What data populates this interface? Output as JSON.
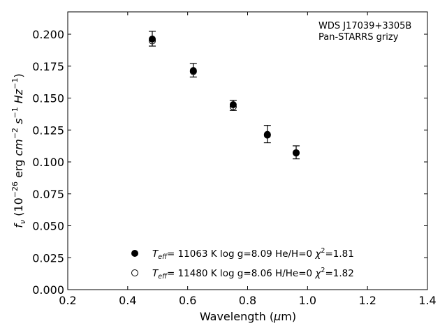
{
  "chart_data": {
    "type": "scatter",
    "xlabel": "Wavelength (μm)",
    "xlabel_parts": {
      "pre": "Wavelength (",
      "mu": "μ",
      "post": "m)"
    },
    "ylabel_parts": {
      "f": "f",
      "nu": "ν",
      "open": " (10",
      "exp26": "−26",
      "erg": " erg ",
      "cm": "cm",
      "exp2": "−2",
      "s": "s",
      "exp1a": "−1",
      "hz": "Hz",
      "exp1b": "−1",
      "close": ")"
    },
    "xlim": [
      0.2,
      1.4
    ],
    "ylim": [
      0.0,
      0.2175
    ],
    "xticks": [
      "0.2",
      "0.4",
      "0.6",
      "0.8",
      "1.0",
      "1.2",
      "1.4"
    ],
    "yticks": [
      "0.000",
      "0.025",
      "0.050",
      "0.075",
      "0.100",
      "0.125",
      "0.150",
      "0.175",
      "0.200"
    ],
    "annotation": [
      "WDS J17039+3305B",
      "Pan-STARRS grizy"
    ],
    "observed": [
      {
        "x": 0.482,
        "y": 0.1965,
        "err": 0.0058
      },
      {
        "x": 0.619,
        "y": 0.1718,
        "err": 0.0053
      },
      {
        "x": 0.752,
        "y": 0.1443,
        "err": 0.004
      },
      {
        "x": 0.866,
        "y": 0.1218,
        "err": 0.0068
      },
      {
        "x": 0.962,
        "y": 0.1075,
        "err": 0.0051
      }
    ],
    "series": [
      {
        "marker": "filled",
        "label": {
          "T": "T",
          "eff": "eff",
          "rest": "= 11063 K  log g=8.09  He/H=0  ",
          "chi": "χ",
          "two": "2",
          "val": "=1.81"
        },
        "x": [
          0.482,
          0.619,
          0.752,
          0.866,
          0.962
        ],
        "y": [
          0.1962,
          0.1715,
          0.1448,
          0.1215,
          0.1072
        ]
      },
      {
        "marker": "open",
        "label": {
          "T": "T",
          "eff": "eff",
          "rest": "= 11480 K  log g=8.06  H/He=0  ",
          "chi": "χ",
          "two": "2",
          "val": "=1.82"
        },
        "x": [
          0.482,
          0.619,
          0.752,
          0.866,
          0.962
        ],
        "y": [
          0.1948,
          0.1708,
          0.1432,
          0.121,
          0.107
        ]
      }
    ],
    "legend_placement": "lower-center",
    "grid": false,
    "colors": {
      "marker": "#000000",
      "axes": "#000000",
      "background": "#ffffff"
    }
  }
}
